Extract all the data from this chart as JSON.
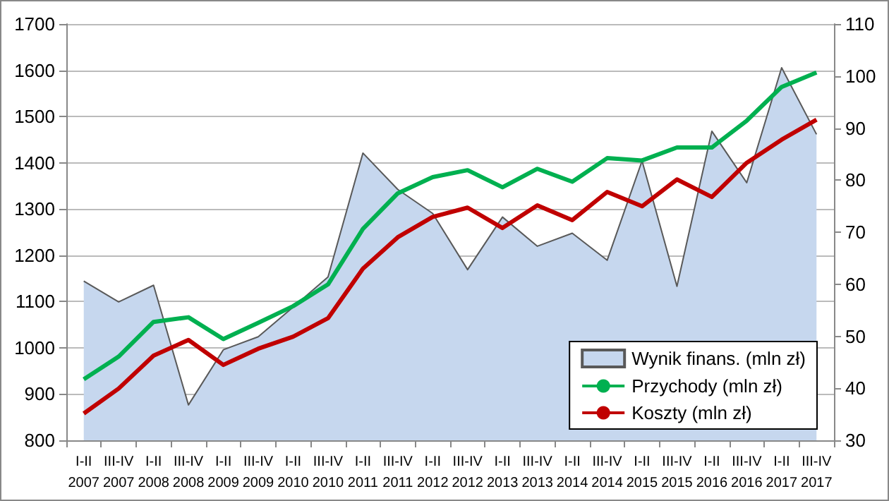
{
  "chart_data": {
    "type": "line",
    "categories": [
      "I-II\n2007",
      "III-IV\n2007",
      "I-II\n2008",
      "III-IV\n2008",
      "I-II\n2009",
      "III-IV\n2009",
      "I-II\n2010",
      "III-IV\n2010",
      "I-II\n2011",
      "III-IV\n2011",
      "I-II\n2012",
      "III-IV\n2012",
      "I-II\n2013",
      "III-IV\n2013",
      "I-II\n2014",
      "III-IV\n2014",
      "I-II\n2015",
      "III-IV\n2015",
      "I-II\n2016",
      "III-IV\n2016",
      "I-II\n2017",
      "III-IV\n2017"
    ],
    "series": [
      {
        "name": "Wynik finans. (mln zł)",
        "type": "area",
        "axis": "y2",
        "color": "#c6d7ee",
        "values": [
          60.6,
          56.6,
          59.8,
          36.8,
          47.4,
          49.9,
          55.6,
          61.4,
          85.2,
          78.2,
          73.6,
          62.8,
          72.9,
          67.3,
          69.8,
          64.6,
          83.7,
          59.6,
          89.4,
          79.5,
          101.6,
          88.8
        ]
      },
      {
        "name": "Przychody (mln zł)",
        "color": "#00b050",
        "values": [
          932,
          981,
          1056,
          1066,
          1019,
          1054,
          1090,
          1137,
          1257,
          1334,
          1369,
          1384,
          1347,
          1387,
          1359,
          1410,
          1405,
          1433,
          1433,
          1491,
          1564,
          1595
        ]
      },
      {
        "name": "Koszty (mln zł)",
        "color": "#c00000",
        "values": [
          858,
          912,
          983,
          1017,
          963,
          998,
          1024,
          1064,
          1171,
          1239,
          1283,
          1303,
          1259,
          1308,
          1276,
          1337,
          1306,
          1364,
          1326,
          1400,
          1450,
          1493
        ]
      }
    ],
    "ylim": [
      800,
      1700
    ],
    "yticks": [
      800,
      900,
      1000,
      1100,
      1200,
      1300,
      1400,
      1500,
      1600,
      1700
    ],
    "y2lim": [
      30,
      110
    ],
    "y2ticks": [
      30,
      40,
      50,
      60,
      70,
      80,
      90,
      100,
      110
    ],
    "grid": "y",
    "legend": "bottom right",
    "marker": "none",
    "line_style": "solid"
  }
}
